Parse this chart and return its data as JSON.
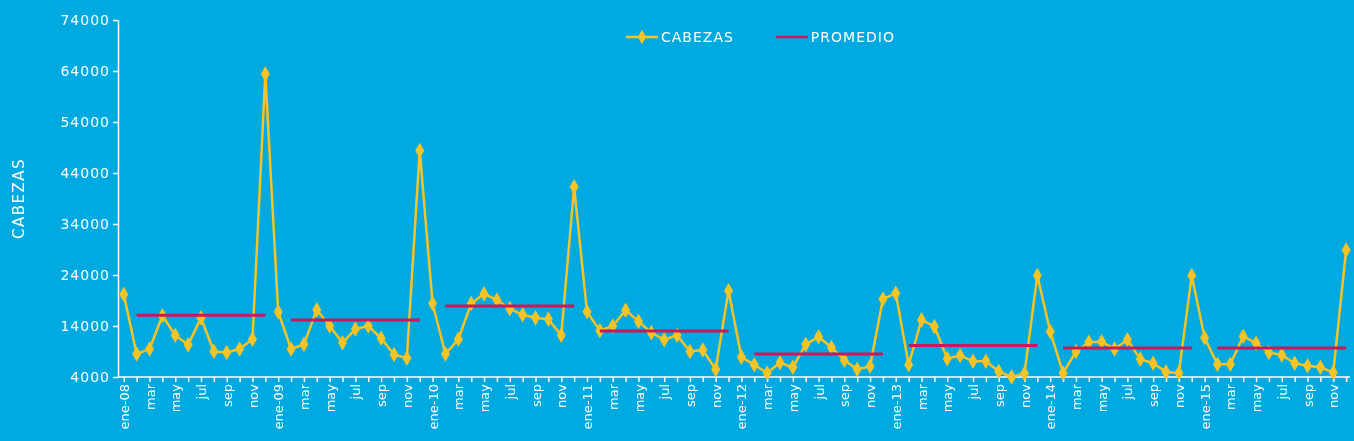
{
  "chart_data": {
    "type": "line",
    "ylabel": "CABEZAS",
    "categories": [
      "ene-08",
      null,
      "mar",
      null,
      "may",
      null,
      "jul",
      null,
      "sep",
      null,
      "nov",
      null,
      "ene-09",
      null,
      "mar",
      null,
      "may",
      null,
      "jul",
      null,
      "sep",
      null,
      "nov",
      null,
      "ene-10",
      null,
      "mar",
      null,
      "may",
      null,
      "jul",
      null,
      "sep",
      null,
      "nov",
      null,
      "ene-11",
      null,
      "mar",
      null,
      "may",
      null,
      "jul",
      null,
      "sep",
      null,
      "nov",
      null,
      "ene-12",
      null,
      "mar",
      null,
      "may",
      null,
      "jul",
      null,
      "sep",
      null,
      "nov",
      null,
      "ene-13",
      null,
      "mar",
      null,
      "may",
      null,
      "jul",
      null,
      "sep",
      null,
      "nov",
      null,
      "ene-14",
      null,
      "mar",
      null,
      "may",
      null,
      "jul",
      null,
      "sep",
      null,
      "nov",
      null,
      "ene-15",
      null,
      "mar",
      null,
      "may",
      null,
      "jul",
      null,
      "sep",
      null,
      "nov",
      null
    ],
    "series": [
      {
        "name": "CABEZAS",
        "color": "#f7c325",
        "marker": "diamond",
        "values": [
          20200,
          8500,
          9500,
          16000,
          12200,
          10300,
          15600,
          9000,
          8800,
          9500,
          11400,
          63400,
          16800,
          9500,
          10400,
          17200,
          14000,
          10700,
          13400,
          14000,
          11600,
          8400,
          7700,
          48400,
          18400,
          8500,
          11400,
          18400,
          20300,
          19100,
          17400,
          16200,
          15600,
          15300,
          12200,
          41300,
          16800,
          13100,
          14000,
          17100,
          14900,
          12700,
          11300,
          12200,
          9000,
          9300,
          5500,
          20900,
          7900,
          6400,
          4800,
          6800,
          5900,
          10400,
          11900,
          9800,
          7300,
          5500,
          6100,
          19300,
          20400,
          6400,
          15200,
          13900,
          7600,
          8200,
          7100,
          7100,
          5100,
          4000,
          4700,
          23900,
          12900,
          4800,
          9000,
          10800,
          10900,
          9500,
          11300,
          7500,
          6700,
          5000,
          4800,
          23900,
          11700,
          6500,
          6500,
          12000,
          10600,
          8800,
          8300,
          6700,
          6200,
          5900,
          4900,
          28900
        ]
      },
      {
        "name": "PROMEDIO",
        "color": "#c8195a",
        "marker": "none",
        "values": [
          null,
          16100,
          16100,
          16100,
          16100,
          16100,
          16100,
          16100,
          16100,
          16100,
          16100,
          16100,
          null,
          15200,
          15200,
          15200,
          15200,
          15200,
          15200,
          15200,
          15200,
          15200,
          15200,
          15200,
          null,
          17900,
          17900,
          17900,
          17900,
          17900,
          17900,
          17900,
          17900,
          17900,
          17900,
          17900,
          null,
          13000,
          13000,
          13000,
          13000,
          13000,
          13000,
          13000,
          13000,
          13000,
          13000,
          13000,
          null,
          8500,
          8500,
          8500,
          8500,
          8500,
          8500,
          8500,
          8500,
          8500,
          8500,
          8500,
          null,
          10200,
          10200,
          10200,
          10200,
          10200,
          10200,
          10200,
          10200,
          10200,
          10200,
          10200,
          null,
          9700,
          9700,
          9700,
          9700,
          9700,
          9700,
          9700,
          9700,
          9700,
          9700,
          9700,
          null,
          9700,
          9700,
          9700,
          9700,
          9700,
          9700,
          9700,
          9700,
          9700,
          9700,
          9700
        ]
      }
    ],
    "ylim": [
      4000,
      74000
    ],
    "yticks": [
      4000,
      14000,
      24000,
      34000,
      44000,
      54000,
      64000,
      74000
    ],
    "grid": false,
    "legend": "top"
  }
}
